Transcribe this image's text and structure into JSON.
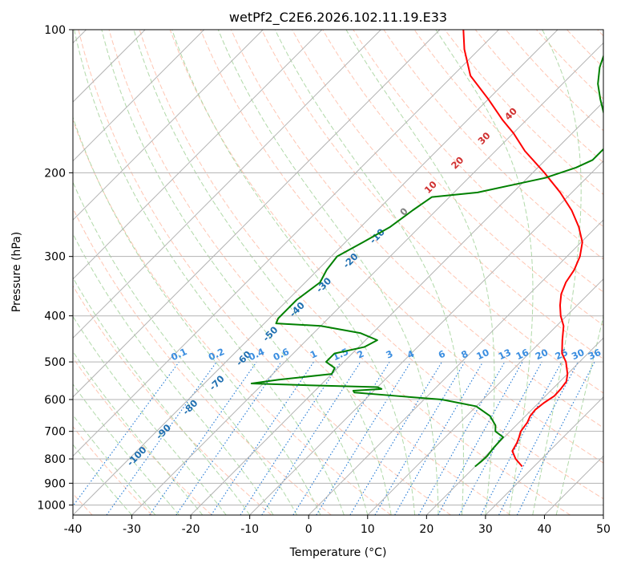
{
  "chart_data": {
    "type": "skew-t",
    "title": "wetPf2_C2E6.2026.102.11.19.E33",
    "xlabel": "Temperature (°C)",
    "ylabel": "Pressure (hPa)",
    "xlim": [
      -40,
      50
    ],
    "ylim": [
      1050,
      100
    ],
    "x_ticks": [
      -40,
      -30,
      -20,
      -10,
      0,
      10,
      20,
      30,
      40,
      50
    ],
    "y_ticks": [
      100,
      200,
      300,
      400,
      500,
      600,
      700,
      800,
      900,
      1000
    ],
    "skew_degrees": 45,
    "colors": {
      "temperature": "#ff0000",
      "dewpoint": "#008000",
      "isotherm": "#b3b3b3",
      "isobar": "#b3b3b3",
      "dry_adiabat": "#ffb399",
      "moist_adiabat": "#a8d5a0",
      "mixing_ratio": "#1f77d4",
      "isotherm_label": "#1f6fb0",
      "positive_label": "#d03030",
      "zero_label": "#808080",
      "mixing_label": "#3b8ee0"
    },
    "series": [
      {
        "name": "Temperature",
        "points": [
          [
            830,
            28.0
          ],
          [
            800,
            25.6
          ],
          [
            770,
            23.7
          ],
          [
            740,
            23.1
          ],
          [
            720,
            22.5
          ],
          [
            700,
            21.8
          ],
          [
            670,
            21.4
          ],
          [
            650,
            20.8
          ],
          [
            630,
            20.6
          ],
          [
            610,
            20.9
          ],
          [
            590,
            21.5
          ],
          [
            570,
            21.4
          ],
          [
            550,
            21.1
          ],
          [
            530,
            20.0
          ],
          [
            500,
            17.7
          ],
          [
            480,
            15.6
          ],
          [
            450,
            13.4
          ],
          [
            420,
            11.2
          ],
          [
            400,
            9.0
          ],
          [
            380,
            7.1
          ],
          [
            360,
            5.4
          ],
          [
            340,
            4.2
          ],
          [
            320,
            3.5
          ],
          [
            300,
            2.2
          ],
          [
            280,
            0.2
          ],
          [
            260,
            -3.0
          ],
          [
            240,
            -7.0
          ],
          [
            220,
            -12.0
          ],
          [
            200,
            -18.0
          ],
          [
            180,
            -25.0
          ],
          [
            165,
            -30.0
          ],
          [
            155,
            -34.0
          ],
          [
            140,
            -40.0
          ],
          [
            125,
            -47.0
          ],
          [
            110,
            -52.5
          ],
          [
            100,
            -56.0
          ]
        ]
      },
      {
        "name": "Dewpoint",
        "points": [
          [
            830,
            20.0
          ],
          [
            810,
            20.2
          ],
          [
            790,
            20.3
          ],
          [
            760,
            20.0
          ],
          [
            740,
            19.9
          ],
          [
            720,
            19.8
          ],
          [
            700,
            17.5
          ],
          [
            680,
            16.5
          ],
          [
            650,
            14.0
          ],
          [
            620,
            10.0
          ],
          [
            600,
            3.0
          ],
          [
            590,
            -5.0
          ],
          [
            580,
            -13.0
          ],
          [
            575,
            -13.5
          ],
          [
            570,
            -9.0
          ],
          [
            565,
            -10.0
          ],
          [
            560,
            -22.0
          ],
          [
            555,
            -32.0
          ],
          [
            545,
            -28.0
          ],
          [
            530,
            -20.0
          ],
          [
            515,
            -20.5
          ],
          [
            500,
            -23.0
          ],
          [
            480,
            -23.0
          ],
          [
            465,
            -19.0
          ],
          [
            450,
            -18.0
          ],
          [
            435,
            -22.0
          ],
          [
            420,
            -30.0
          ],
          [
            415,
            -38.0
          ],
          [
            405,
            -38.5
          ],
          [
            390,
            -38.5
          ],
          [
            370,
            -38.5
          ],
          [
            340,
            -37.5
          ],
          [
            320,
            -38.5
          ],
          [
            300,
            -39.0
          ],
          [
            280,
            -37.0
          ],
          [
            260,
            -35.0
          ],
          [
            240,
            -34.0
          ],
          [
            225,
            -33.0
          ],
          [
            220,
            -26.0
          ],
          [
            205,
            -17.0
          ],
          [
            195,
            -13.5
          ],
          [
            188,
            -12.0
          ],
          [
            178,
            -12.0
          ],
          [
            160,
            -15.0
          ],
          [
            150,
            -18.0
          ],
          [
            140,
            -21.0
          ],
          [
            130,
            -24.0
          ],
          [
            120,
            -26.5
          ],
          [
            110,
            -28.5
          ],
          [
            100,
            -30.0
          ]
        ]
      }
    ],
    "isotherm_labels": [
      "-100",
      "-90",
      "-80",
      "-70",
      "-60",
      "-50",
      "-40",
      "-30",
      "-20",
      "-10",
      "0",
      "10",
      "20",
      "30",
      "40"
    ],
    "isotherm_label_values": [
      -100,
      -90,
      -80,
      -70,
      -60,
      -50,
      -40,
      -30,
      -20,
      -10,
      0,
      10,
      20,
      30,
      40
    ],
    "mixing_ratio_labels": [
      "0.1",
      "0.2",
      "0.4",
      "0.6",
      "1",
      "1.5",
      "2",
      "3",
      "4",
      "6",
      "8",
      "10",
      "13",
      "16",
      "20",
      "25",
      "30",
      "36"
    ],
    "mixing_ratio_values": [
      0.1,
      0.2,
      0.4,
      0.6,
      1,
      1.5,
      2,
      3,
      4,
      6,
      8,
      10,
      13,
      16,
      20,
      25,
      30,
      36
    ],
    "mixing_ratio_label_pressure": 500
  }
}
